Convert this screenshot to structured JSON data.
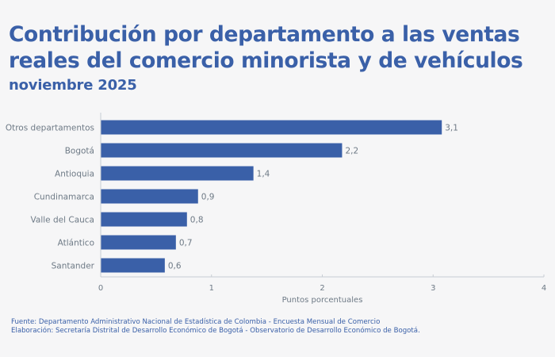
{
  "header": {
    "title": "Contribución por departamento a las ventas reales del comercio minorista y de vehículos",
    "subtitle": "noviembre 2025"
  },
  "footer": {
    "source": "Fuente: Departamento Administrativo Nacional de Estadística de Colombia - Encuesta Mensual de Comercio",
    "elaboration": "Elaboración: Secretaría Distrital de Desarrollo Económico de Bogotá - Observatorio de Desarrollo Económico de Bogotá."
  },
  "colors": {
    "bar": "#3a60a8",
    "title": "#3a60a8",
    "label_text": "#6e7a86",
    "axis": "#c7ccd3"
  },
  "chart_data": {
    "type": "bar",
    "orientation": "horizontal",
    "title": "Contribución por departamento a las ventas reales del comercio minorista y de vehículos",
    "subtitle": "noviembre 2025",
    "categories": [
      "Otros departamentos",
      "Bogotá",
      "Antioquia",
      "Cundinamarca",
      "Valle del Cauca",
      "Atlántico",
      "Santander"
    ],
    "values": [
      3.1,
      2.2,
      1.4,
      0.9,
      0.8,
      0.7,
      0.6
    ],
    "data_labels": [
      "3,1",
      "2,2",
      "1,4",
      "0,9",
      "0,8",
      "0,7",
      "0,6"
    ],
    "xlabel": "Puntos porcentuales",
    "ylabel": "",
    "xlim": [
      0,
      4
    ],
    "xticks": [
      0,
      1,
      2,
      3,
      4
    ],
    "xtick_labels": [
      "0",
      "1",
      "2",
      "3",
      "4"
    ],
    "grid": false,
    "legend": "none"
  }
}
